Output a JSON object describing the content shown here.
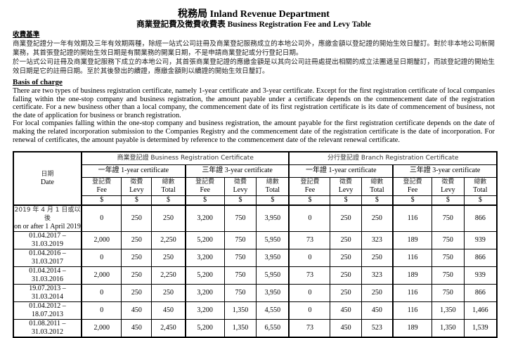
{
  "title": "稅務局 Inland Revenue Department",
  "subtitle": "商業登記費及徵費收費表  Business Registration Fee and Levy Table",
  "zh_basis": {
    "heading": "收費基準",
    "p1": "商業登記證分一年有效期及三年有效期兩種，除經一站式公司註冊及商業登記服務成立的本地公司外，應繳金額以登記證的開始生效日釐訂。對於非本地公司新開業務，其首張登記證的開始生效日期是有關業務的開業日期，不是申請商業登記或分行登記日期。",
    "p2": "於一站式公司註冊及商業登記服務下成立的本地公司，其首張商業登記證的應繳金額是以其向公司註冊處提出相關的成立法團遞呈日期釐訂，而該登記證的開始生效日期是它的註冊日期。至於其後發出的續證，應繳金額則以續證的開始生效日釐訂。"
  },
  "en_basis": {
    "heading": "Basis of charge",
    "p1": "There are two types of business registration certificate, namely 1-year certificate and 3-year certificate. Except for the first registration certificate of local companies falling within the one-stop company and business registration, the amount payable under a certificate depends on the commencement date of the registration certificate. For a new business other than a local company, the commencement date of its first registration certificate is its date of commencement of business, not the date of application for business or branch registration.",
    "p2": "For local companies falling within the one-stop company and business registration, the amount payable for the first registration certificate depends on the date of making the related incorporation submission to the Companies Registry and the commencement date of the registration certificate is the date of incorporation. For renewal of certificates, the amount payable is determined by reference to the commencement date of the relevant renewal certificate."
  },
  "table": {
    "date_zh": "日期",
    "date_en": "Date",
    "groups": [
      "商業登記證  Business Registration Certificate",
      "分行登記證  Branch Registration Certificate"
    ],
    "subgroups": [
      "一年證  1-year certificate",
      "三年證  3-year certificate",
      "一年證  1-year certificate",
      "三年證  3-year certificate"
    ],
    "cols": [
      {
        "zh": "登記費",
        "en": "Fee"
      },
      {
        "zh": "徵費",
        "en": "Levy"
      },
      {
        "zh": "總數",
        "en": "Total"
      }
    ],
    "currency": "$",
    "rows": [
      {
        "zh": "2019 年 4 月 1 日或以後",
        "date": "on or after 1 April 2019",
        "v": [
          "0",
          "250",
          "250",
          "3,200",
          "750",
          "3,950",
          "0",
          "250",
          "250",
          "116",
          "750",
          "866"
        ]
      },
      {
        "date": "01.04.2017 – 31.03.2019",
        "v": [
          "2,000",
          "250",
          "2,250",
          "5,200",
          "750",
          "5,950",
          "73",
          "250",
          "323",
          "189",
          "750",
          "939"
        ]
      },
      {
        "date": "01.04.2016 – 31.03.2017",
        "v": [
          "0",
          "250",
          "250",
          "3,200",
          "750",
          "3,950",
          "0",
          "250",
          "250",
          "116",
          "750",
          "866"
        ]
      },
      {
        "date": "01.04.2014 – 31.03.2016",
        "v": [
          "2,000",
          "250",
          "2,250",
          "5,200",
          "750",
          "5,950",
          "73",
          "250",
          "323",
          "189",
          "750",
          "939"
        ]
      },
      {
        "date": "19.07.2013 – 31.03.2014",
        "v": [
          "0",
          "250",
          "250",
          "3,200",
          "750",
          "3,950",
          "0",
          "250",
          "250",
          "116",
          "750",
          "866"
        ]
      },
      {
        "date": "01.04.2012 – 18.07.2013",
        "v": [
          "0",
          "450",
          "450",
          "3,200",
          "1,350",
          "4,550",
          "0",
          "450",
          "450",
          "116",
          "1,350",
          "1,466"
        ]
      },
      {
        "date": "01.08.2011 – 31.03.2012",
        "v": [
          "2,000",
          "450",
          "2,450",
          "5,200",
          "1,350",
          "6,550",
          "73",
          "450",
          "523",
          "189",
          "1,350",
          "1,539"
        ]
      }
    ]
  }
}
